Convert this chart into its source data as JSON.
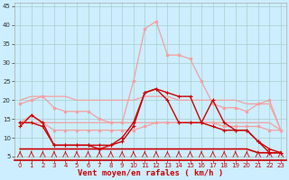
{
  "x": [
    0,
    1,
    2,
    3,
    4,
    5,
    6,
    7,
    8,
    9,
    10,
    11,
    12,
    13,
    14,
    15,
    16,
    17,
    18,
    19,
    20,
    21,
    22,
    23
  ],
  "line_rafales_light": [
    19,
    20,
    21,
    18,
    17,
    17,
    17,
    15,
    14,
    14,
    25,
    39,
    41,
    32,
    32,
    31,
    25,
    19,
    18,
    18,
    17,
    19,
    20,
    12
  ],
  "line_moy_light1": [
    20,
    21,
    21,
    21,
    21,
    20,
    20,
    20,
    20,
    20,
    20,
    21,
    21,
    21,
    20,
    20,
    20,
    20,
    20,
    20,
    19,
    19,
    19,
    12
  ],
  "line_moy_light2": [
    14,
    16,
    14,
    12,
    12,
    12,
    12,
    12,
    12,
    12,
    12,
    13,
    14,
    14,
    14,
    14,
    14,
    14,
    13,
    13,
    13,
    13,
    12,
    12
  ],
  "line_flat_light": [
    14,
    14,
    14,
    14,
    14,
    14,
    14,
    14,
    14,
    14,
    14,
    14,
    14,
    14,
    14,
    14,
    14,
    14,
    14,
    14,
    14,
    14,
    14,
    12
  ],
  "line_rafales_dark": [
    13,
    16,
    14,
    8,
    8,
    8,
    8,
    7,
    8,
    10,
    14,
    22,
    23,
    22,
    21,
    21,
    14,
    20,
    14,
    12,
    12,
    9,
    7,
    6
  ],
  "line_moy_dark": [
    14,
    14,
    13,
    8,
    8,
    8,
    8,
    8,
    8,
    9,
    13,
    22,
    23,
    20,
    14,
    14,
    14,
    13,
    12,
    12,
    12,
    9,
    6,
    6
  ],
  "line_flat_dark": [
    7,
    7,
    7,
    7,
    7,
    7,
    7,
    7,
    7,
    7,
    7,
    7,
    7,
    7,
    7,
    7,
    7,
    7,
    7,
    7,
    7,
    6,
    6,
    6
  ],
  "color_light": "#f4a0a0",
  "color_dark": "#cc0000",
  "color_medium": "#e06060",
  "bg_color": "#cceeff",
  "grid_color": "#aacccc",
  "xlabel": "Vent moyen/en rafales ( km/h )",
  "ylim": [
    5,
    45
  ],
  "yticks": [
    5,
    10,
    15,
    20,
    25,
    30,
    35,
    40,
    45
  ],
  "xticks": [
    0,
    1,
    2,
    3,
    4,
    5,
    6,
    7,
    8,
    9,
    10,
    11,
    12,
    13,
    14,
    15,
    16,
    17,
    18,
    19,
    20,
    21,
    22,
    23
  ]
}
